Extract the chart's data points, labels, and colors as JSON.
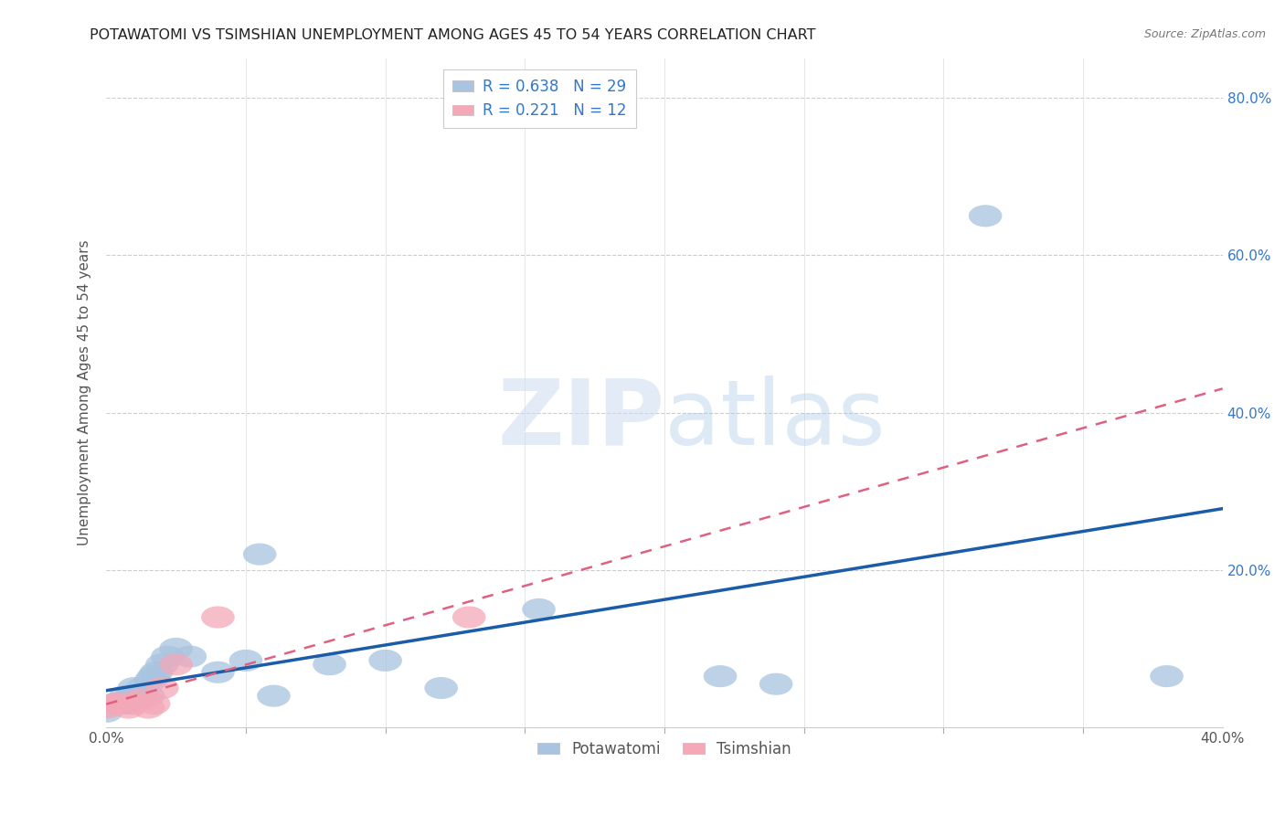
{
  "title": "POTAWATOMI VS TSIMSHIAN UNEMPLOYMENT AMONG AGES 45 TO 54 YEARS CORRELATION CHART",
  "source": "Source: ZipAtlas.com",
  "ylabel": "Unemployment Among Ages 45 to 54 years",
  "xlim": [
    0.0,
    0.4
  ],
  "ylim": [
    0.0,
    0.85
  ],
  "xticks": [
    0.0,
    0.05,
    0.1,
    0.15,
    0.2,
    0.25,
    0.3,
    0.35,
    0.4
  ],
  "yticks_right": [
    0.0,
    0.2,
    0.4,
    0.6,
    0.8
  ],
  "yticklabels_right": [
    "",
    "20.0%",
    "40.0%",
    "60.0%",
    "80.0%"
  ],
  "potawatomi_R": 0.638,
  "potawatomi_N": 29,
  "tsimshian_R": 0.221,
  "tsimshian_N": 12,
  "potawatomi_color": "#a8c4e0",
  "tsimshian_color": "#f4a8b8",
  "potawatomi_line_color": "#1a5ca8",
  "tsimshian_line_color": "#e06080",
  "potawatomi_x": [
    0.0,
    0.003,
    0.005,
    0.007,
    0.008,
    0.009,
    0.01,
    0.012,
    0.013,
    0.015,
    0.016,
    0.017,
    0.018,
    0.02,
    0.022,
    0.025,
    0.03,
    0.04,
    0.05,
    0.055,
    0.06,
    0.08,
    0.1,
    0.12,
    0.155,
    0.22,
    0.24,
    0.315,
    0.38
  ],
  "potawatomi_y": [
    0.02,
    0.03,
    0.03,
    0.04,
    0.03,
    0.04,
    0.05,
    0.04,
    0.05,
    0.04,
    0.06,
    0.065,
    0.07,
    0.08,
    0.09,
    0.1,
    0.09,
    0.07,
    0.085,
    0.22,
    0.04,
    0.08,
    0.085,
    0.05,
    0.15,
    0.065,
    0.055,
    0.65,
    0.065
  ],
  "tsimshian_x": [
    0.0,
    0.003,
    0.005,
    0.008,
    0.01,
    0.012,
    0.015,
    0.017,
    0.02,
    0.025,
    0.04,
    0.13
  ],
  "tsimshian_y": [
    0.025,
    0.03,
    0.03,
    0.025,
    0.03,
    0.035,
    0.025,
    0.03,
    0.05,
    0.08,
    0.14,
    0.14
  ]
}
